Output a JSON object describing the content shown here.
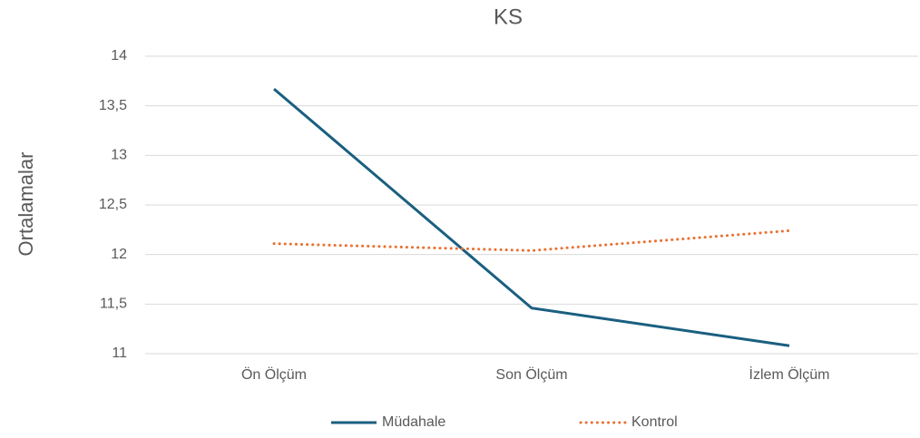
{
  "chart_data": {
    "type": "line",
    "title": "KS",
    "y_label": "Ortalamalar",
    "categories": [
      "Ön Ölçüm",
      "Son Ölçüm",
      "İzlem Ölçüm"
    ],
    "series": [
      {
        "name": "Müdahale",
        "color": "#1a5f80",
        "style": "solid",
        "values": [
          13.67,
          11.46,
          11.08
        ]
      },
      {
        "name": "Kontrol",
        "color": "#e97132",
        "style": "dotted",
        "values": [
          12.11,
          12.04,
          12.24
        ]
      }
    ],
    "ylim": [
      11,
      14
    ],
    "yticks": [
      11,
      {
        "value": 11.5,
        "label": "11,5"
      },
      12,
      {
        "value": 12.5,
        "label": "12,5"
      },
      13,
      {
        "value": 13.5,
        "label": "13,5"
      },
      14
    ],
    "grid": true,
    "legend": "bottom"
  }
}
